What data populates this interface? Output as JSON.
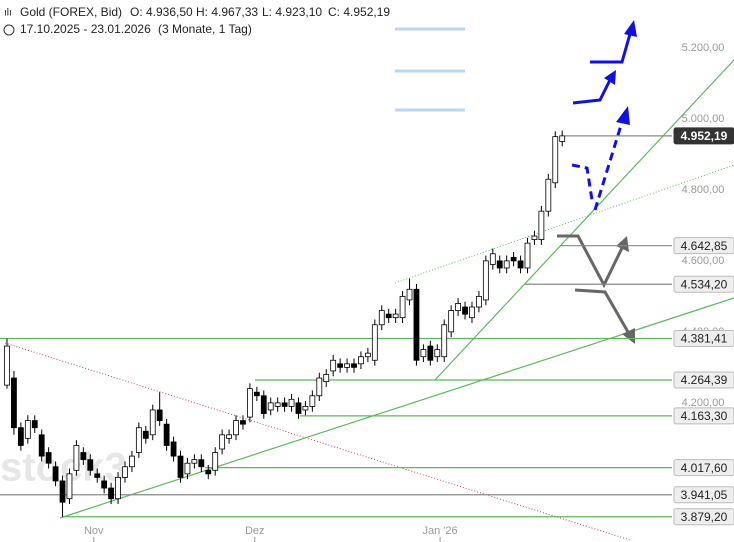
{
  "chart_data": {
    "type": "candlestick",
    "title": "Gold (FOREX, Bid)",
    "ohlc_summary": [
      "O: 4.936,50",
      "H: 4.967,33",
      "L: 4.923,10",
      "C: 4.952,19"
    ],
    "subtitle": "17.10.2025 - 23.01.2026",
    "period": "(3 Monate, 1 Tag)",
    "watermark": "stock3",
    "open": [
      4250,
      4270,
      4130,
      4100,
      4150,
      4110,
      4060,
      4020,
      3980,
      3930,
      4010,
      4060,
      4040,
      4000,
      3980,
      3960,
      3930,
      3990,
      4020,
      4060,
      4120,
      4110,
      4180,
      4140,
      4090,
      4050,
      4000,
      4030,
      4040,
      4010,
      4010,
      4070,
      4100,
      4110,
      4150,
      4160,
      4230,
      4220,
      4180,
      4190,
      4200,
      4190,
      4200,
      4180,
      4190,
      4220,
      4260,
      4290,
      4310,
      4300,
      4310,
      4310,
      4330,
      4320,
      4420,
      4450,
      4440,
      4440,
      4490,
      4520,
      4330,
      4360,
      4330,
      4330,
      4400,
      4460,
      4470,
      4440,
      4470,
      4490,
      4590,
      4600,
      4580,
      4610,
      4600,
      4580,
      4660,
      4660,
      4740,
      4820,
      4936.5
    ],
    "high": [
      4381,
      4290,
      4145,
      4165,
      4165,
      4125,
      4075,
      4035,
      3995,
      4015,
      4095,
      4075,
      4055,
      4015,
      3995,
      3975,
      4005,
      4035,
      4065,
      4145,
      4135,
      4195,
      4230,
      4155,
      4105,
      4065,
      4045,
      4055,
      4055,
      4025,
      4075,
      4125,
      4125,
      4165,
      4165,
      4255,
      4245,
      4235,
      4215,
      4215,
      4215,
      4225,
      4215,
      4205,
      4235,
      4285,
      4295,
      4335,
      4325,
      4325,
      4325,
      4345,
      4355,
      4435,
      4475,
      4465,
      4465,
      4515,
      4550,
      4535,
      4365,
      4375,
      4365,
      4435,
      4475,
      4495,
      4485,
      4485,
      4515,
      4615,
      4635,
      4615,
      4615,
      4625,
      4615,
      4665,
      4685,
      4755,
      4845,
      4965,
      4967.33
    ],
    "low": [
      4240,
      4110,
      4065,
      4085,
      4115,
      4035,
      4015,
      3965,
      3879,
      3915,
      3995,
      4025,
      3995,
      3975,
      3945,
      3915,
      3915,
      3975,
      4005,
      4045,
      4085,
      4095,
      4135,
      4065,
      4035,
      3975,
      3985,
      4015,
      4005,
      3985,
      3995,
      4055,
      4085,
      4095,
      4125,
      4145,
      4205,
      4155,
      4165,
      4175,
      4175,
      4175,
      4155,
      4165,
      4175,
      4205,
      4245,
      4275,
      4285,
      4285,
      4285,
      4295,
      4315,
      4305,
      4405,
      4425,
      4425,
      4425,
      4475,
      4305,
      4315,
      4305,
      4315,
      4315,
      4385,
      4445,
      4435,
      4425,
      4455,
      4475,
      4575,
      4565,
      4565,
      4585,
      4565,
      4565,
      4645,
      4645,
      4725,
      4805,
      4923.1
    ],
    "close": [
      4360,
      4130,
      4080,
      4150,
      4130,
      4050,
      4030,
      3980,
      3920,
      4000,
      4080,
      4040,
      4010,
      3990,
      3960,
      3930,
      3990,
      4020,
      4050,
      4130,
      4100,
      4180,
      4150,
      4080,
      4050,
      3990,
      4030,
      4040,
      4020,
      4000,
      4060,
      4110,
      4110,
      4150,
      4140,
      4240,
      4220,
      4170,
      4200,
      4200,
      4190,
      4210,
      4170,
      4190,
      4220,
      4270,
      4280,
      4320,
      4300,
      4310,
      4300,
      4330,
      4340,
      4420,
      4460,
      4440,
      4450,
      4500,
      4520,
      4320,
      4350,
      4320,
      4350,
      4420,
      4460,
      4480,
      4450,
      4470,
      4500,
      4600,
      4620,
      4580,
      4600,
      4600,
      4580,
      4650,
      4670,
      4740,
      4830,
      4950,
      4952.19
    ],
    "up_color": "#ffffff",
    "down_color": "#000000",
    "ylim": [
      3808,
      5335
    ],
    "yticks": [
      {
        "value": 4200,
        "label": "4.200,00"
      },
      {
        "value": 4400,
        "label": "4.400,00"
      },
      {
        "value": 4600,
        "label": "4.600,00"
      },
      {
        "value": 4800,
        "label": "4.800,00"
      },
      {
        "value": 5000,
        "label": "5.000,00"
      },
      {
        "value": 5200,
        "label": "5.200,00"
      }
    ],
    "xticks": [
      {
        "value": 12.5,
        "label": "Nov"
      },
      {
        "value": 35.7,
        "label": "Dez"
      },
      {
        "value": 62.4,
        "label": "Jan '26"
      }
    ],
    "levels": [
      {
        "value": 4952.19,
        "label": "4.952,19",
        "color": "#888888"
      },
      {
        "value": 4642.85,
        "label": "4.642,85",
        "color": "#888888"
      },
      {
        "value": 4534.2,
        "label": "4.534,20",
        "color": "#888888"
      },
      {
        "value": 4381.41,
        "label": "4.381,41",
        "color": "#5cb85c"
      },
      {
        "value": 4264.39,
        "label": "4.264,39",
        "color": "#5cb85c"
      },
      {
        "value": 4163.3,
        "label": "4.163,30",
        "color": "#5cb85c"
      },
      {
        "value": 4017.6,
        "label": "4.017,60",
        "color": "#5cb85c"
      },
      {
        "value": 3941.05,
        "label": "3.941,05",
        "color": "#888888"
      },
      {
        "value": 3879.2,
        "label": "3.879,20",
        "color": "#5cb85c"
      }
    ]
  }
}
